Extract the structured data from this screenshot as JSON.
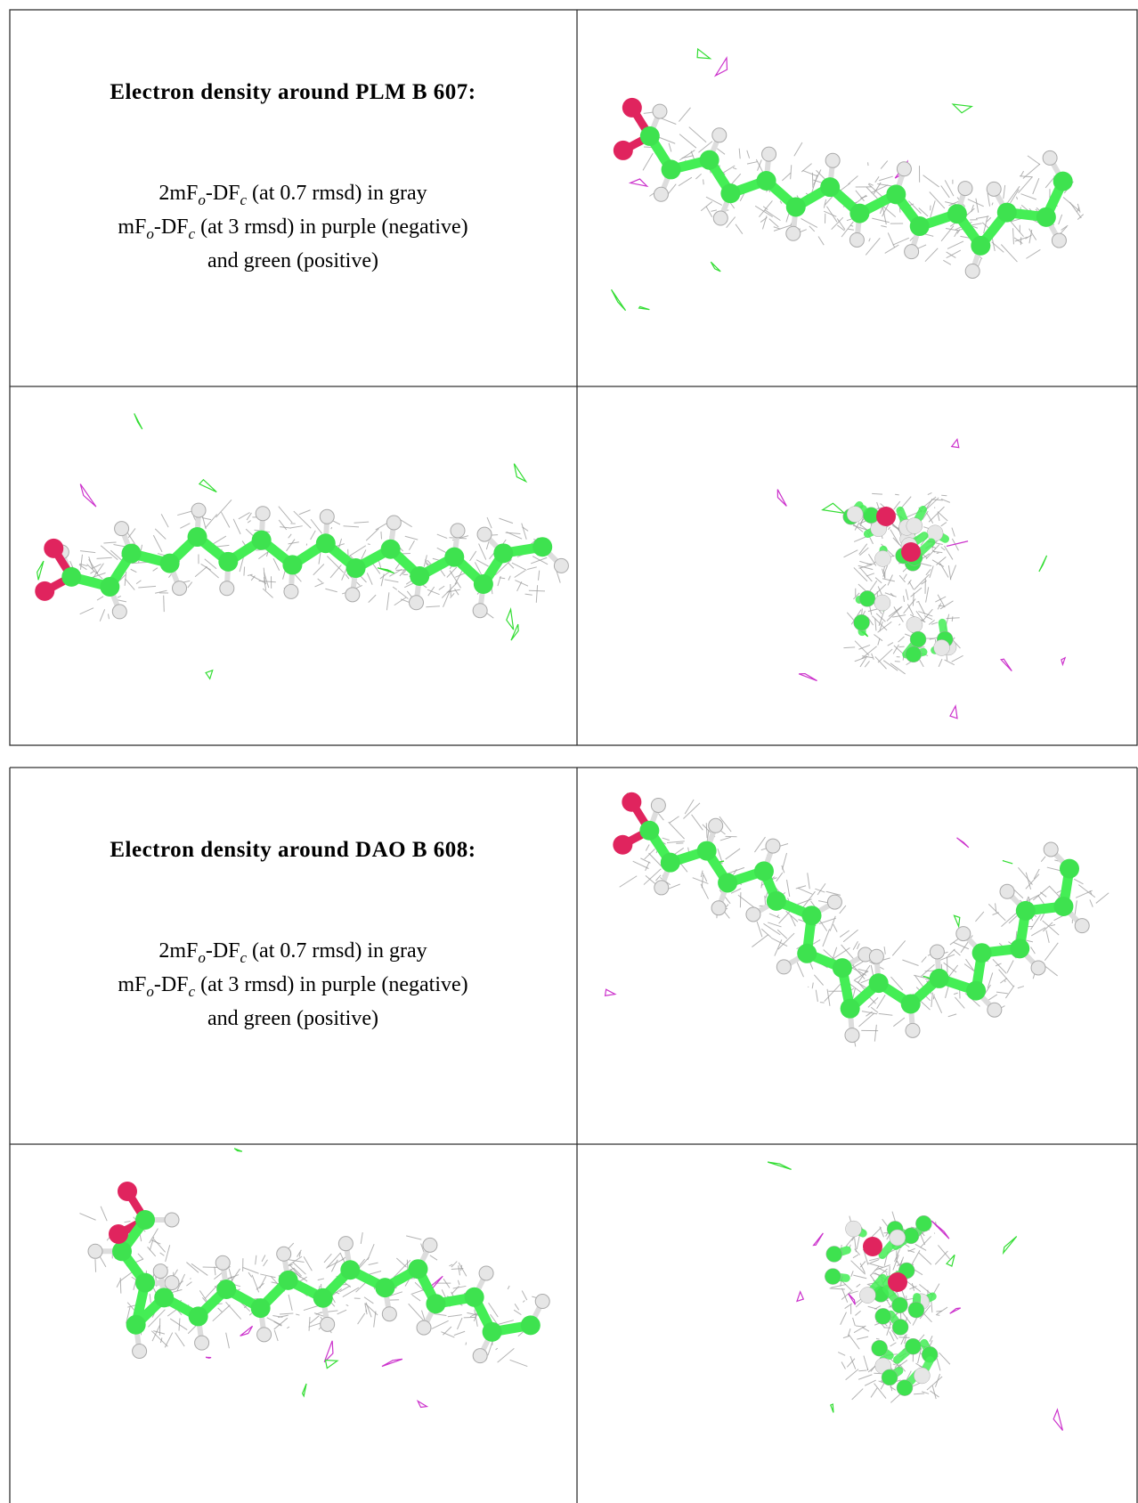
{
  "sections": [
    {
      "title": "Electron density around PLM B 607:",
      "legend": [
        [
          {
            "text": "2mF"
          },
          {
            "sub": "o"
          },
          {
            "text": "-DF"
          },
          {
            "sub": "c"
          },
          {
            "text": " (at 0.7 rmsd) in gray"
          }
        ],
        [
          {
            "text": "mF"
          },
          {
            "sub": "o"
          },
          {
            "text": "-DF"
          },
          {
            "sub": "c"
          },
          {
            "text": " (at 3 rmsd) in purple (negative)"
          }
        ],
        [
          {
            "text": "and green (positive)"
          }
        ]
      ]
    },
    {
      "title": "Electron density around DAO B 608:",
      "legend": [
        [
          {
            "text": "2mF"
          },
          {
            "sub": "o"
          },
          {
            "text": "-DF"
          },
          {
            "sub": "c"
          },
          {
            "text": " (at 0.7 rmsd) in gray"
          }
        ],
        [
          {
            "text": "mF"
          },
          {
            "sub": "o"
          },
          {
            "text": "-DF"
          },
          {
            "sub": "c"
          },
          {
            "text": " (at 3 rmsd) in purple (negative)"
          }
        ],
        [
          {
            "text": "and green (positive)"
          }
        ]
      ]
    }
  ]
}
